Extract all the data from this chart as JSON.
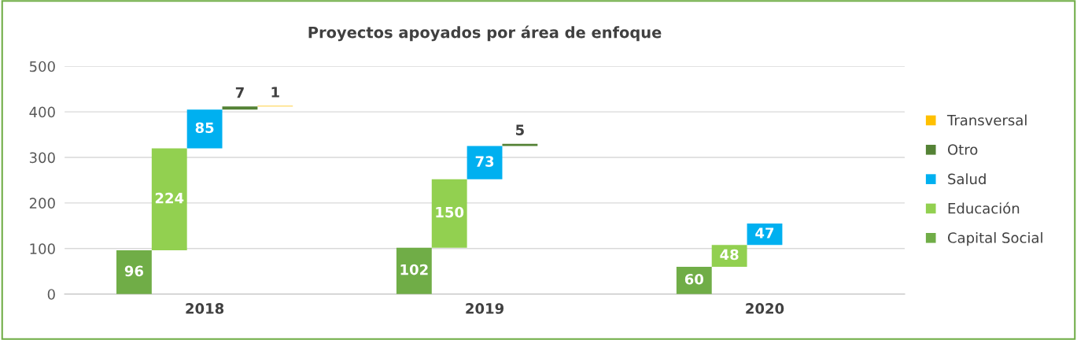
{
  "chart_data": {
    "type": "bar",
    "title": "Proyectos apoyados por área de enfoque",
    "categories": [
      "2018",
      "2019",
      "2020"
    ],
    "series": [
      {
        "name": "Capital Social",
        "color": "#70ad47",
        "values": [
          96,
          102,
          60
        ],
        "base": [
          0,
          0,
          0
        ]
      },
      {
        "name": "Educación",
        "color": "#92d050",
        "values": [
          224,
          150,
          48
        ],
        "base": [
          96,
          102,
          60
        ]
      },
      {
        "name": "Salud",
        "color": "#00b0f0",
        "values": [
          85,
          73,
          47
        ],
        "base": [
          320,
          252,
          108
        ]
      },
      {
        "name": "Otro",
        "color": "#548235",
        "values": [
          7,
          5,
          null
        ],
        "base": [
          405,
          325,
          null
        ]
      },
      {
        "name": "Transversal",
        "color": "#ffc000",
        "values": [
          1,
          null,
          null
        ],
        "base": [
          412,
          null,
          null
        ]
      }
    ],
    "ylim": [
      0,
      500
    ],
    "yticks": [
      0,
      100,
      200,
      300,
      400,
      500
    ],
    "grid": "y",
    "legend": "right",
    "data_labels": true
  }
}
